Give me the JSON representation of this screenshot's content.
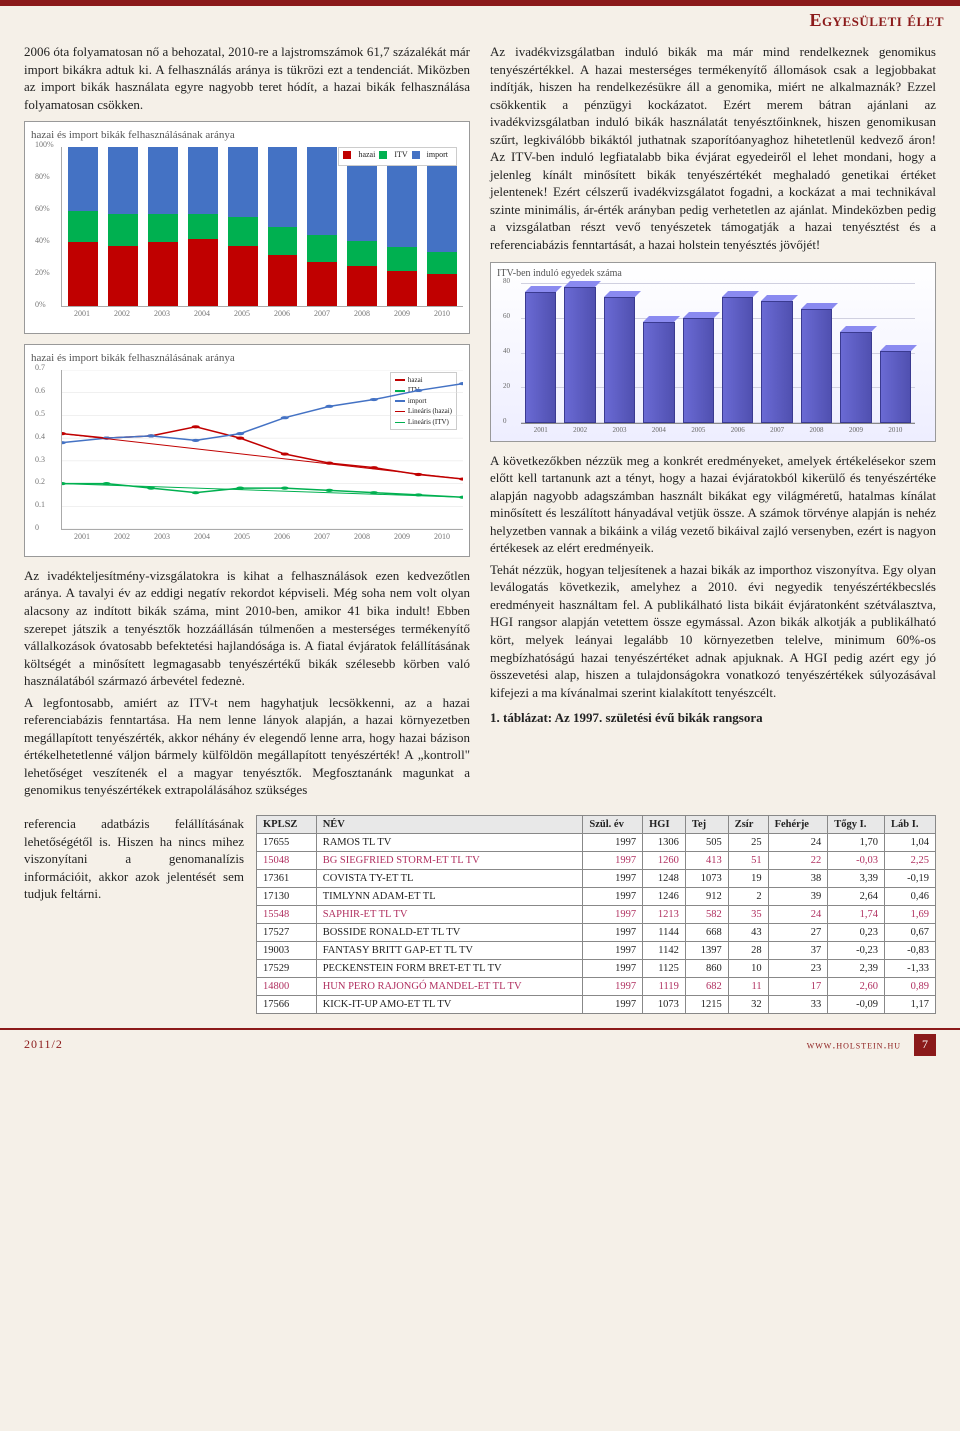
{
  "header": {
    "section_title": "Egyesületi élet"
  },
  "left_col": {
    "p1": "2006 óta folyamatosan nő a behozatal, 2010-re a lajstromszámok 61,7 százalékát már import bikákra adtuk ki. A felhasználás aránya is tükrözi ezt a tendenciát. Miközben az import bikák használata egyre nagyobb teret hódít, a hazai bikák felhasználása folyamatosan csökken.",
    "p2": "Az ivadékteljesítmény-vizsgálatokra is kihat a felhasználások ezen kedvezőtlen aránya. A tavalyi év az eddigi negatív rekordot képviseli. Még soha nem volt olyan alacsony az indított bikák száma, mint 2010-ben, amikor 41 bika indult! Ebben szerepet játszik a tenyésztők hozzáállásán túlmenően a mesterséges termékenyítő vállalkozások óvatosabb befektetési hajlandósága is. A fiatal évjáratok felállításának költségét a minősített legmagasabb tenyészértékű bikák szélesebb körben való használatából származó árbevétel fedeznė.",
    "p3": "A legfontosabb, amiért az ITV-t nem hagyhatjuk lecsökkenni, az a hazai referenciabázis fenntartása. Ha nem lenne lányok alapján, a hazai környezetben megállapított tenyészérték, akkor néhány év elegendő lenne arra, hogy hazai bázison értékelhetetlenné váljon bármely külföldön megállapított tenyészérték! A „kontroll\" lehetőséget veszítenék el a magyar tenyésztők. Megfosztanánk magunkat a genomikus tenyészértékek extrapolálásához szükséges",
    "p4": "referencia adatbázis felállításának lehetőségétől is. Hiszen ha nincs mihez viszonyítani a genomanalízis információit, akkor azok jelentését sem tudjuk feltárni."
  },
  "right_col": {
    "p1": "Az ivadékvizsgálatban induló bikák ma már mind rendelkeznek genomikus tenyészértékkel. A hazai mesterséges termékenyítő állomások csak a legjobbakat indítják, hiszen ha rendelkezésükre áll a genomika, miért ne alkalmaznák? Ezzel csökkentik a pénzügyi kockázatot. Ezért merem bátran ajánlani az ivadékvizsgálatban induló bikák használatát tenyésztőinknek, hiszen genomikusan szűrt, legkiválóbb bikáktól juthatnak szaporítóanyaghoz hihetetlenül kedvező áron! Az ITV-ben induló legfiatalabb bika évjárat egyedeiről el lehet mondani, hogy a jelenleg kínált minősített bikák tenyészértékét meghaladó genetikai értéket jelentenek! Ezért célszerű ivadékvizsgálatot fogadni, a kockázat a mai technikával szinte minimális, ár-érték arányban pedig verhetetlen az ajánlat. Mindeközben pedig a vizsgálatban részt vevő tenyészetek támogatják a hazai tenyésztést és a referenciabázis fenntartását, a hazai holstein tenyésztés jövőjét!",
    "p2": "A következőkben nézzük meg a konkrét eredményeket, amelyek értékelésekor szem előtt kell tartanunk azt a tényt, hogy a hazai évjáratokból kikerülő és tenyészértéke alapján nagyobb adagszámban használt bikákat egy világméretű, hatalmas kínálat minősített és leszálított hányadával vetjük össze. A számok törvénye alapján is nehéz helyzetben vannak a bikáink a világ vezető bikáival zajló versenyben, ezért is nagyon értékesek az elért eredményeik.",
    "p3": "Tehát nézzük, hogyan teljesítenek a hazai bikák az importhoz viszonyítva. Egy olyan leválogatás következik, amelyhez a 2010. évi negyedik tenyészértékbecslés eredményeit használtam fel. A publikálható lista bikáit évjáratonként szétválasztva, HGI rangsor alapján vetettem össze egymással. Azon bikák alkotják a publikálható kört, melyek leányai legalább 10 környezetben telelve, minimum 60%-os megbízhatóságú hazai tenyészértéket adnak apjuknak. A HGI pedig azért egy jó összevetési alap, hiszen a tulajdonságokra vonatkozó tenyészértékek súlyozásával kifejezi a ma kívánalmai szerint kialakított tenyészcélt."
  },
  "chart1": {
    "title": "hazai és import bikák felhasználásának aránya",
    "type": "stacked-bar",
    "legend": [
      "hazai",
      "ITV",
      "import"
    ],
    "legend_colors": [
      "#c00000",
      "#00b050",
      "#4472c4"
    ],
    "years": [
      "2001",
      "2002",
      "2003",
      "2004",
      "2005",
      "2006",
      "2007",
      "2008",
      "2009",
      "2010"
    ],
    "series": {
      "hazai": [
        40,
        38,
        40,
        42,
        38,
        32,
        28,
        25,
        22,
        20
      ],
      "itv": [
        20,
        20,
        18,
        16,
        18,
        18,
        17,
        16,
        15,
        14
      ],
      "import": [
        40,
        42,
        42,
        42,
        44,
        50,
        55,
        59,
        63,
        66
      ]
    },
    "ylim": [
      0,
      100
    ],
    "yticks": [
      0,
      20,
      40,
      60,
      80,
      100
    ],
    "bg": "#ffffff"
  },
  "chart2": {
    "title": "hazai és import bikák felhasználásának aránya",
    "type": "line",
    "legend": [
      "hazai",
      "ITV",
      "import",
      "Lineáris (hazai)",
      "Lineáris (ITV)"
    ],
    "colors": [
      "#c00000",
      "#00b050",
      "#4472c4",
      "#c00000",
      "#00b050"
    ],
    "years": [
      "2001",
      "2002",
      "2003",
      "2004",
      "2005",
      "2006",
      "2007",
      "2008",
      "2009",
      "2010"
    ],
    "series": {
      "hazai": [
        0.42,
        0.4,
        0.41,
        0.45,
        0.4,
        0.33,
        0.29,
        0.27,
        0.24,
        0.22
      ],
      "itv": [
        0.2,
        0.2,
        0.18,
        0.16,
        0.18,
        0.18,
        0.17,
        0.16,
        0.15,
        0.14
      ],
      "import": [
        0.38,
        0.4,
        0.41,
        0.39,
        0.42,
        0.49,
        0.54,
        0.57,
        0.61,
        0.64
      ]
    },
    "ylim": [
      0,
      0.7
    ],
    "yticks": [
      0,
      0.1,
      0.2,
      0.3,
      0.4,
      0.5,
      0.6,
      0.7
    ],
    "bg": "#ffffff"
  },
  "chart3": {
    "title": "ITV-ben induló egyedek száma",
    "type": "bar-3d",
    "years": [
      "2001",
      "2002",
      "2003",
      "2004",
      "2005",
      "2006",
      "2007",
      "2008",
      "2009",
      "2010"
    ],
    "values": [
      75,
      78,
      72,
      58,
      60,
      72,
      70,
      65,
      52,
      41
    ],
    "ylim": [
      0,
      80
    ],
    "yticks": [
      0,
      20,
      40,
      60,
      80
    ],
    "bar_color": "#6060c8",
    "bg": "#f4f4fb"
  },
  "table": {
    "title": "1. táblázat: Az 1997. születési évű bikák rangsora",
    "columns": [
      "KPLSZ",
      "NÉV",
      "Szül. év",
      "HGI",
      "Tej",
      "Zsír",
      "Fehérje",
      "Tőgy I.",
      "Láb I."
    ],
    "highlight_rows": [
      1,
      4,
      8
    ],
    "rows": [
      [
        "17655",
        "RAMOS TL TV",
        "1997",
        "1306",
        "505",
        "25",
        "24",
        "1,70",
        "1,04"
      ],
      [
        "15048",
        "BG SIEGFRIED STORM-ET TL TV",
        "1997",
        "1260",
        "413",
        "51",
        "22",
        "-0,03",
        "2,25"
      ],
      [
        "17361",
        "COVISTA TY-ET TL",
        "1997",
        "1248",
        "1073",
        "19",
        "38",
        "3,39",
        "-0,19"
      ],
      [
        "17130",
        "TIMLYNN ADAM-ET TL",
        "1997",
        "1246",
        "912",
        "2",
        "39",
        "2,64",
        "0,46"
      ],
      [
        "15548",
        "SAPHIR-ET TL TV",
        "1997",
        "1213",
        "582",
        "35",
        "24",
        "1,74",
        "1,69"
      ],
      [
        "17527",
        "BOSSIDE RONALD-ET TL TV",
        "1997",
        "1144",
        "668",
        "43",
        "27",
        "0,23",
        "0,67"
      ],
      [
        "19003",
        "FANTASY BRITT GAP-ET TL TV",
        "1997",
        "1142",
        "1397",
        "28",
        "37",
        "-0,23",
        "-0,83"
      ],
      [
        "17529",
        "PECKENSTEIN FORM BRET-ET TL TV",
        "1997",
        "1125",
        "860",
        "10",
        "23",
        "2,39",
        "-1,33"
      ],
      [
        "14800",
        "HUN PERO RAJONGÓ MANDEL-ET TL TV",
        "1997",
        "1119",
        "682",
        "11",
        "17",
        "2,60",
        "0,89"
      ],
      [
        "17566",
        "KICK-IT-UP AMO-ET TL TV",
        "1997",
        "1073",
        "1215",
        "32",
        "33",
        "-0,09",
        "1,17"
      ]
    ]
  },
  "footer": {
    "issue": "2011/2",
    "site": "www.holstein.hu",
    "page": "7"
  }
}
